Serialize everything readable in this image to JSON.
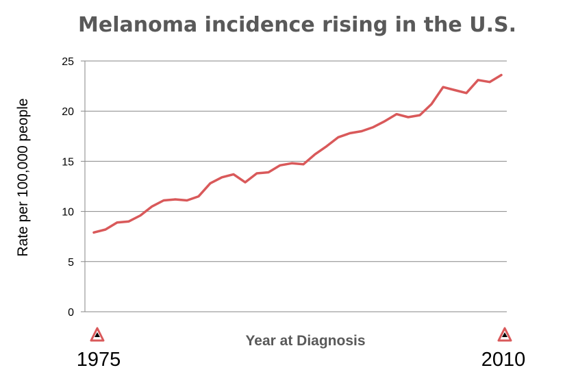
{
  "chart_data": {
    "type": "line",
    "title": "Melanoma incidence rising in the U.S.",
    "xlabel": "Year at Diagnosis",
    "ylabel": "Rate per 100,000 people",
    "ylim": [
      0,
      25
    ],
    "yticks": [
      "0",
      "5",
      "10",
      "15",
      "20",
      "25"
    ],
    "grid": true,
    "x": [
      1975,
      1976,
      1977,
      1978,
      1979,
      1980,
      1981,
      1982,
      1983,
      1984,
      1985,
      1986,
      1987,
      1988,
      1989,
      1990,
      1991,
      1992,
      1993,
      1994,
      1995,
      1996,
      1997,
      1998,
      1999,
      2000,
      2001,
      2002,
      2003,
      2004,
      2005,
      2006,
      2007,
      2008,
      2009,
      2010
    ],
    "series": [
      {
        "name": "",
        "color": "#d9595a",
        "values": [
          7.9,
          8.2,
          8.9,
          9.0,
          9.6,
          10.5,
          11.1,
          11.2,
          11.1,
          11.5,
          12.8,
          13.4,
          13.7,
          12.9,
          13.8,
          13.9,
          14.6,
          14.8,
          14.7,
          15.7,
          16.5,
          17.4,
          17.8,
          18.0,
          18.4,
          19.0,
          19.7,
          19.4,
          19.6,
          20.7,
          22.4,
          22.1,
          21.8,
          23.1,
          22.9,
          23.6
        ]
      }
    ],
    "start_label": "1975",
    "end_label": "2010",
    "marker_color": "#d9595a"
  }
}
